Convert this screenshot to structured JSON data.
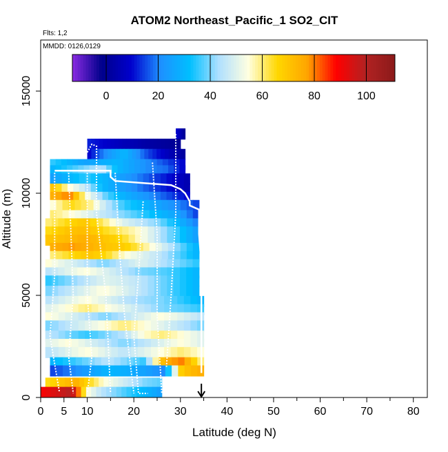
{
  "chart_data": {
    "type": "heatmap",
    "title": "ATOM2 Northeast_Pacific_1 SO2_CIT",
    "flights_label": "Flts: 1,2",
    "date_label": "MMDD: 0126,0129",
    "xlabel": "Latitude (deg N)",
    "ylabel": "Altitude (m)",
    "xlim": [
      0,
      83
    ],
    "ylim": [
      0,
      17500
    ],
    "x_ticks": [
      0,
      5,
      10,
      20,
      30,
      40,
      50,
      60,
      70,
      80
    ],
    "y_ticks": [
      0,
      5000,
      10000,
      15000
    ],
    "colorbar": {
      "range": [
        -13,
        111
      ],
      "ticks": [
        0,
        20,
        40,
        60,
        80,
        100
      ],
      "colors": [
        "#8a2be2",
        "#00008b",
        "#0000cd",
        "#1e90ff",
        "#00bfff",
        "#b0e0ff",
        "#ffffe0",
        "#ffd700",
        "#ffa500",
        "#ff0000",
        "#b22222",
        "#8b1a1a"
      ]
    },
    "arrow_marker_lat": 34.5,
    "bands": [
      {
        "alt": 12900,
        "lat": [
          29,
          31
        ],
        "values": [
          10,
          5,
          0
        ]
      },
      {
        "alt": 12400,
        "lat": [
          10,
          30
        ],
        "values": [
          12,
          10,
          8,
          6,
          5,
          3,
          2,
          1,
          0
        ]
      },
      {
        "alt": 11900,
        "lat": [
          10,
          31
        ],
        "values": [
          10,
          18,
          25,
          30,
          22,
          15,
          10,
          5,
          2
        ]
      },
      {
        "alt": 11400,
        "lat": [
          2,
          31
        ],
        "values": [
          35,
          30,
          25,
          28,
          30,
          25,
          20,
          15,
          10
        ]
      },
      {
        "alt": 11100,
        "lat": [
          2,
          31
        ],
        "values": [
          30,
          35,
          40,
          45,
          30,
          25,
          20,
          18,
          10
        ]
      },
      {
        "alt": 10700,
        "lat": [
          2,
          32
        ],
        "values": [
          25,
          30,
          35,
          30,
          25,
          20,
          15,
          10,
          5
        ]
      },
      {
        "alt": 10200,
        "lat": [
          2,
          32
        ],
        "values": [
          70,
          55,
          45,
          30,
          25,
          20,
          15,
          10,
          5
        ]
      },
      {
        "alt": 9800,
        "lat": [
          2,
          32
        ],
        "values": [
          75,
          80,
          55,
          40,
          30,
          25,
          20,
          15,
          10
        ]
      },
      {
        "alt": 9400,
        "lat": [
          2,
          34
        ],
        "values": [
          55,
          65,
          60,
          45,
          35,
          30,
          25,
          20,
          15
        ]
      },
      {
        "alt": 8900,
        "lat": [
          2,
          34
        ],
        "values": [
          60,
          55,
          50,
          45,
          40,
          35,
          30,
          25,
          15
        ]
      },
      {
        "alt": 8500,
        "lat": [
          1,
          34
        ],
        "values": [
          60,
          65,
          70,
          60,
          50,
          45,
          40,
          30,
          20
        ]
      },
      {
        "alt": 8100,
        "lat": [
          1,
          34
        ],
        "values": [
          65,
          70,
          72,
          65,
          60,
          55,
          45,
          35,
          25
        ]
      },
      {
        "alt": 7700,
        "lat": [
          1,
          34
        ],
        "values": [
          70,
          72,
          75,
          70,
          65,
          55,
          45,
          35,
          25
        ]
      },
      {
        "alt": 7300,
        "lat": [
          2,
          34
        ],
        "values": [
          75,
          78,
          75,
          70,
          68,
          60,
          50,
          40,
          30
        ]
      },
      {
        "alt": 6900,
        "lat": [
          2,
          34
        ],
        "values": [
          60,
          65,
          70,
          65,
          55,
          50,
          45,
          38,
          30
        ]
      },
      {
        "alt": 6500,
        "lat": [
          1,
          34
        ],
        "values": [
          55,
          50,
          45,
          40,
          45,
          50,
          45,
          40,
          35
        ]
      },
      {
        "alt": 6100,
        "lat": [
          1,
          34
        ],
        "values": [
          45,
          50,
          55,
          50,
          45,
          40,
          38,
          35,
          30
        ]
      },
      {
        "alt": 5700,
        "lat": [
          1,
          34
        ],
        "values": [
          35,
          40,
          45,
          50,
          48,
          45,
          40,
          35,
          30
        ]
      },
      {
        "alt": 5200,
        "lat": [
          1,
          34
        ],
        "values": [
          40,
          45,
          50,
          55,
          50,
          45,
          40,
          35,
          30
        ]
      },
      {
        "alt": 4700,
        "lat": [
          1,
          35
        ],
        "values": [
          45,
          50,
          55,
          50,
          45,
          42,
          40,
          35,
          30
        ]
      },
      {
        "alt": 4300,
        "lat": [
          1,
          35
        ],
        "values": [
          50,
          55,
          60,
          55,
          50,
          45,
          40,
          38,
          35
        ]
      },
      {
        "alt": 3900,
        "lat": [
          1,
          35
        ],
        "values": [
          55,
          50,
          45,
          40,
          45,
          50,
          55,
          50,
          45
        ]
      },
      {
        "alt": 3500,
        "lat": [
          1,
          35
        ],
        "values": [
          40,
          45,
          50,
          55,
          60,
          55,
          50,
          45,
          40
        ]
      },
      {
        "alt": 3000,
        "lat": [
          1,
          35
        ],
        "values": [
          45,
          40,
          35,
          40,
          45,
          55,
          60,
          55,
          50
        ]
      },
      {
        "alt": 2600,
        "lat": [
          1,
          35
        ],
        "values": [
          50,
          55,
          50,
          45,
          40,
          45,
          50,
          55,
          50
        ]
      },
      {
        "alt": 2200,
        "lat": [
          1,
          35
        ],
        "values": [
          45,
          50,
          55,
          50,
          45,
          50,
          55,
          60,
          55
        ]
      },
      {
        "alt": 1700,
        "lat": [
          2,
          35
        ],
        "values": [
          30,
          35,
          40,
          45,
          40,
          35,
          75,
          80,
          60
        ]
      },
      {
        "alt": 1300,
        "lat": [
          2,
          35
        ],
        "values": [
          15,
          20,
          25,
          30,
          28,
          25,
          20,
          70,
          75
        ]
      },
      {
        "alt": 700,
        "lat": [
          1,
          26
        ],
        "values": [
          65,
          70,
          75,
          65,
          55,
          50,
          45,
          40,
          38
        ]
      },
      {
        "alt": 250,
        "lat": [
          0,
          26
        ],
        "values": [
          90,
          95,
          100,
          55,
          45,
          40,
          35,
          30,
          25
        ]
      }
    ],
    "flight_track": [
      [
        3,
        11100
      ],
      [
        15,
        11100
      ],
      [
        15,
        10800
      ],
      [
        16,
        10600
      ],
      [
        22,
        10500
      ],
      [
        28,
        10400
      ],
      [
        30,
        10200
      ],
      [
        31,
        10000
      ],
      [
        32,
        9600
      ],
      [
        32,
        9400
      ],
      [
        34,
        9200
      ],
      [
        34,
        8000
      ],
      [
        34.5,
        6500
      ],
      [
        34.5,
        4000
      ],
      [
        34.5,
        1200
      ]
    ],
    "profile_tracks": [
      [
        [
          3,
          11000
        ],
        [
          3,
          6000
        ],
        [
          2,
          3000
        ],
        [
          4,
          300
        ]
      ],
      [
        [
          6,
          11000
        ],
        [
          7,
          5000
        ],
        [
          6,
          2000
        ],
        [
          7,
          200
        ]
      ],
      [
        [
          10,
          11000
        ],
        [
          10,
          5000
        ],
        [
          11,
          2000
        ],
        [
          10,
          200
        ]
      ],
      [
        [
          10,
          12000
        ],
        [
          11,
          12400
        ],
        [
          12,
          12300
        ],
        [
          12,
          9000
        ],
        [
          14,
          5000
        ],
        [
          15,
          200
        ]
      ],
      [
        [
          16,
          11000
        ],
        [
          17,
          7000
        ],
        [
          18,
          4000
        ],
        [
          20,
          200
        ]
      ],
      [
        [
          22,
          9600
        ],
        [
          21,
          6000
        ],
        [
          20,
          3000
        ],
        [
          21,
          200
        ],
        [
          23,
          200
        ]
      ],
      [
        [
          24,
          11500
        ],
        [
          25,
          8000
        ],
        [
          25,
          4000
        ],
        [
          26,
          200
        ]
      ],
      [
        [
          29,
          12900
        ],
        [
          29,
          9000
        ],
        [
          28,
          5000
        ],
        [
          27,
          1500
        ]
      ]
    ]
  }
}
